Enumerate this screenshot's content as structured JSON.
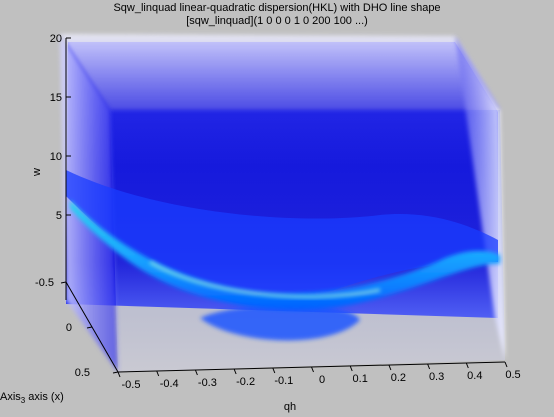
{
  "chart_data": {
    "type": "surface3d-volume",
    "title": "Sqw_linquad linear-quadratic dispersion(HKL) with DHO line shape",
    "subtitle": "[sqw_linquad](1 0 0 0 1 0 200 100 ...)",
    "xlabel": "qh",
    "zlabel": "w",
    "depth_label": {
      "main": "Axis",
      "sub": "3",
      "suffix": " axis (x)"
    },
    "x_ticks": [
      "-0.5",
      "-0.4",
      "-0.3",
      "-0.2",
      "-0.1",
      "0",
      "0.1",
      "0.2",
      "0.3",
      "0.4",
      "0.5"
    ],
    "z_ticks": [
      "5",
      "10",
      "15",
      "20"
    ],
    "depth_ticks": [
      "-0.5",
      "0",
      "0.5"
    ],
    "xlim": [
      -0.5,
      0.5
    ],
    "zlim": [
      0,
      20
    ],
    "depth_lim": [
      -0.5,
      0.5
    ],
    "colormap": "jet",
    "background_color": "#c0c0c0"
  }
}
